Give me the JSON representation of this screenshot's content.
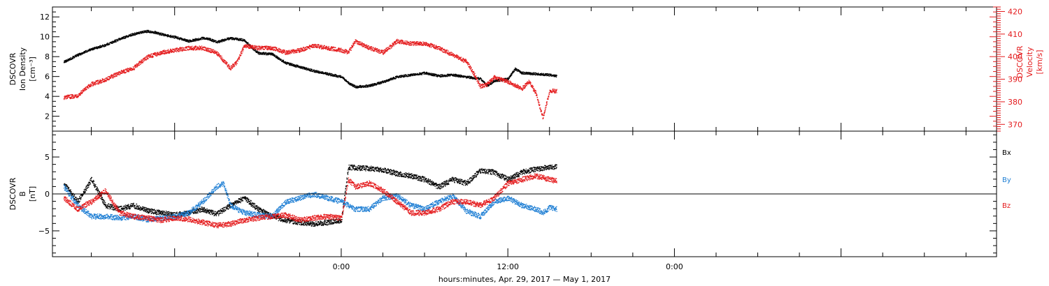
{
  "chart_data": [
    {
      "type": "scatter",
      "panel": "top",
      "x_label": "hours:minutes, Apr. 29, 2017 — May  1, 2017",
      "x_ticks": [
        "0:00",
        "12:00",
        "0:00"
      ],
      "left_axis": {
        "label_lines": [
          "DSCOVR",
          "Ion Density",
          "[cm⁻³]"
        ],
        "ylim": [
          0.5,
          13
        ],
        "ticks": [
          2,
          4,
          6,
          8,
          10,
          12
        ],
        "color": "#000000"
      },
      "right_axis": {
        "label_lines": [
          "DSCOVR",
          "Velocity",
          "[km/s]"
        ],
        "ylim": [
          367,
          422
        ],
        "ticks": [
          370,
          380,
          390,
          400,
          410,
          420
        ],
        "color": "#e41a1c"
      },
      "series": [
        {
          "axis": "left",
          "color": "#000000",
          "points": [
            [
              -20,
              7.5
            ],
            [
              -19,
              8.2
            ],
            [
              -18,
              8.8
            ],
            [
              -17,
              9.2
            ],
            [
              -16,
              9.8
            ],
            [
              -15,
              10.3
            ],
            [
              -14,
              10.6
            ],
            [
              -13.5,
              10.5
            ],
            [
              -13,
              10.3
            ],
            [
              -12,
              10.0
            ],
            [
              -11,
              9.6
            ],
            [
              -10,
              9.9
            ],
            [
              -9.5,
              9.8
            ],
            [
              -9,
              9.5
            ],
            [
              -8,
              9.9
            ],
            [
              -7,
              9.7
            ],
            [
              -6.5,
              9.0
            ],
            [
              -6,
              8.4
            ],
            [
              -5,
              8.3
            ],
            [
              -4,
              7.4
            ],
            [
              -3,
              7.0
            ],
            [
              -2,
              6.6
            ],
            [
              -1,
              6.3
            ],
            [
              0,
              6.0
            ],
            [
              0.5,
              5.4
            ],
            [
              1,
              5.0
            ],
            [
              2,
              5.1
            ],
            [
              3,
              5.5
            ],
            [
              4,
              6.0
            ],
            [
              5,
              6.2
            ],
            [
              6,
              6.4
            ],
            [
              7,
              6.1
            ],
            [
              8,
              6.2
            ],
            [
              9,
              6.0
            ],
            [
              10,
              5.8
            ],
            [
              10.5,
              5.1
            ],
            [
              11,
              5.6
            ],
            [
              12,
              5.8
            ],
            [
              12.5,
              6.8
            ],
            [
              13,
              6.4
            ],
            [
              14,
              6.3
            ],
            [
              15,
              6.2
            ],
            [
              15.5,
              6.1
            ]
          ]
        },
        {
          "axis": "right",
          "color": "#e41a1c",
          "points": [
            [
              -20,
              382
            ],
            [
              -19,
              383
            ],
            [
              -18,
              388
            ],
            [
              -17,
              390
            ],
            [
              -16,
              393
            ],
            [
              -15,
              395
            ],
            [
              -14,
              400
            ],
            [
              -13,
              402
            ],
            [
              -12,
              403
            ],
            [
              -11,
              404
            ],
            [
              -10,
              404
            ],
            [
              -9.5,
              403
            ],
            [
              -9,
              402
            ],
            [
              -8,
              395
            ],
            [
              -7.5,
              398
            ],
            [
              -7,
              405
            ],
            [
              -6,
              404
            ],
            [
              -5,
              404
            ],
            [
              -4,
              402
            ],
            [
              -3,
              403
            ],
            [
              -2,
              405
            ],
            [
              -1,
              404
            ],
            [
              0,
              403
            ],
            [
              0.5,
              402
            ],
            [
              1,
              407
            ],
            [
              2,
              404
            ],
            [
              3,
              402
            ],
            [
              4,
              407
            ],
            [
              5,
              406
            ],
            [
              6,
              406
            ],
            [
              7,
              404
            ],
            [
              8,
              401
            ],
            [
              9,
              398
            ],
            [
              9.5,
              393
            ],
            [
              10,
              387
            ],
            [
              10.5,
              388
            ],
            [
              11,
              391
            ],
            [
              12,
              389
            ],
            [
              13,
              386
            ],
            [
              13.5,
              389
            ],
            [
              14,
              384
            ],
            [
              14.5,
              373
            ],
            [
              15,
              385
            ],
            [
              15.5,
              385
            ]
          ]
        }
      ]
    },
    {
      "type": "scatter",
      "panel": "bottom",
      "x_label": "hours:minutes, Apr. 29, 2017 — May  1, 2017",
      "x_ticks": [
        "0:00",
        "12:00",
        "0:00"
      ],
      "left_axis": {
        "label_lines": [
          "DSCOVR",
          "B",
          "[nT]"
        ],
        "ylim": [
          -8.5,
          8.5
        ],
        "ticks": [
          -5,
          0,
          5
        ],
        "color": "#000000"
      },
      "legend": [
        {
          "label": "Bx",
          "color": "#000000"
        },
        {
          "label": "By",
          "color": "#1f7fd4"
        },
        {
          "label": "Bz",
          "color": "#e41a1c"
        }
      ],
      "series": [
        {
          "name": "Bx",
          "color": "#000000",
          "points": [
            [
              -20,
              1.5
            ],
            [
              -19,
              -1.0
            ],
            [
              -18,
              2.0
            ],
            [
              -17,
              -1.5
            ],
            [
              -16,
              -2.0
            ],
            [
              -15,
              -1.5
            ],
            [
              -14,
              -2.2
            ],
            [
              -13,
              -2.5
            ],
            [
              -12,
              -2.8
            ],
            [
              -11,
              -2.5
            ],
            [
              -10,
              -2.0
            ],
            [
              -9,
              -2.7
            ],
            [
              -8,
              -1.5
            ],
            [
              -7,
              -0.5
            ],
            [
              -6,
              -2.0
            ],
            [
              -5,
              -3.0
            ],
            [
              -4,
              -3.5
            ],
            [
              -3,
              -3.8
            ],
            [
              -2,
              -4.0
            ],
            [
              -1,
              -3.8
            ],
            [
              0,
              -3.5
            ],
            [
              0.5,
              3.7
            ],
            [
              1,
              3.6
            ],
            [
              2,
              3.5
            ],
            [
              3,
              3.3
            ],
            [
              4,
              2.8
            ],
            [
              5,
              2.5
            ],
            [
              6,
              2.0
            ],
            [
              7,
              1.0
            ],
            [
              8,
              2.0
            ],
            [
              9,
              1.5
            ],
            [
              10,
              3.2
            ],
            [
              11,
              3.0
            ],
            [
              12,
              2.0
            ],
            [
              13,
              3.0
            ],
            [
              14,
              3.4
            ],
            [
              15,
              3.7
            ],
            [
              15.5,
              3.7
            ]
          ]
        },
        {
          "name": "By",
          "color": "#1f7fd4",
          "points": [
            [
              -20,
              1.0
            ],
            [
              -19,
              -1.5
            ],
            [
              -18,
              -3.0
            ],
            [
              -17,
              -3.0
            ],
            [
              -16,
              -3.2
            ],
            [
              -15,
              -3.0
            ],
            [
              -14,
              -3.4
            ],
            [
              -13,
              -3.2
            ],
            [
              -12,
              -3.0
            ],
            [
              -11,
              -2.5
            ],
            [
              -10,
              -1.0
            ],
            [
              -9,
              1.0
            ],
            [
              -8.5,
              1.5
            ],
            [
              -8,
              -1.5
            ],
            [
              -7,
              -2.5
            ],
            [
              -6,
              -2.8
            ],
            [
              -5,
              -3.0
            ],
            [
              -4,
              -1.0
            ],
            [
              -3,
              -0.5
            ],
            [
              -2,
              0.0
            ],
            [
              -1,
              -0.5
            ],
            [
              0,
              -1.0
            ],
            [
              1,
              -2.0
            ],
            [
              2,
              -2.0
            ],
            [
              3,
              -0.5
            ],
            [
              4,
              -0.2
            ],
            [
              5,
              -1.5
            ],
            [
              6,
              -2.0
            ],
            [
              7,
              -1.0
            ],
            [
              8,
              -0.2
            ],
            [
              9,
              -2.3
            ],
            [
              10,
              -3.0
            ],
            [
              11,
              -1.0
            ],
            [
              12,
              -0.5
            ],
            [
              13,
              -1.5
            ],
            [
              14,
              -2.0
            ],
            [
              14.5,
              -2.5
            ],
            [
              15,
              -1.8
            ],
            [
              15.5,
              -2.0
            ]
          ]
        },
        {
          "name": "Bz",
          "color": "#e41a1c",
          "points": [
            [
              -20,
              -0.5
            ],
            [
              -19,
              -2.0
            ],
            [
              -18,
              -1.0
            ],
            [
              -17,
              0.5
            ],
            [
              -16,
              -2.5
            ],
            [
              -15,
              -3.0
            ],
            [
              -14,
              -3.2
            ],
            [
              -13,
              -3.5
            ],
            [
              -12,
              -3.2
            ],
            [
              -11,
              -3.4
            ],
            [
              -10,
              -3.8
            ],
            [
              -9,
              -4.2
            ],
            [
              -8,
              -4.0
            ],
            [
              -7,
              -3.5
            ],
            [
              -6,
              -3.2
            ],
            [
              -5,
              -3.0
            ],
            [
              -4,
              -2.8
            ],
            [
              -3,
              -3.5
            ],
            [
              -2,
              -3.2
            ],
            [
              -1,
              -3.0
            ],
            [
              0,
              -3.2
            ],
            [
              0.5,
              2.0
            ],
            [
              1,
              1.0
            ],
            [
              2,
              1.5
            ],
            [
              3,
              0.5
            ],
            [
              4,
              -1.0
            ],
            [
              5,
              -2.5
            ],
            [
              6,
              -2.5
            ],
            [
              7,
              -2.0
            ],
            [
              8,
              -1.0
            ],
            [
              9,
              -1.0
            ],
            [
              10,
              -1.5
            ],
            [
              11,
              -0.5
            ],
            [
              12,
              1.5
            ],
            [
              13,
              2.0
            ],
            [
              14,
              2.5
            ],
            [
              15,
              2.0
            ],
            [
              15.5,
              1.8
            ]
          ]
        }
      ]
    }
  ]
}
